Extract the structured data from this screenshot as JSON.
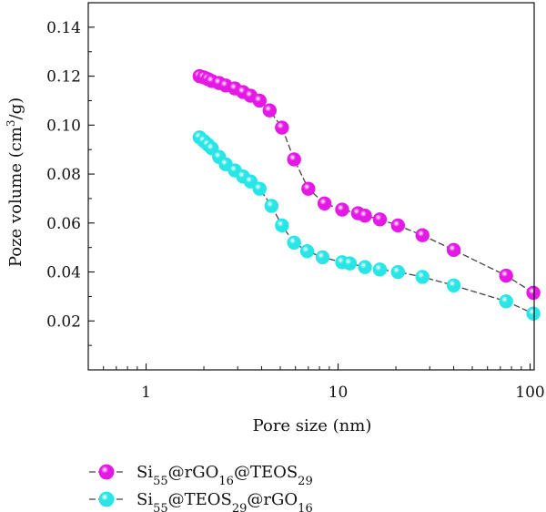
{
  "chart_data": {
    "type": "scatter",
    "title": "",
    "xlabel": "Pore size (nm)",
    "ylabel": "Poze volume (cm",
    "ylabel_sup": "3",
    "ylabel_tail": "/g)",
    "x_scale": "log",
    "xlim": [
      0.5,
      105
    ],
    "ylim": [
      0.0,
      0.15
    ],
    "xticks": [
      1,
      10,
      100
    ],
    "xtick_labels": [
      "1",
      "10",
      "100"
    ],
    "yticks": [
      0.02,
      0.04,
      0.06,
      0.08,
      0.1,
      0.12,
      0.14
    ],
    "ytick_labels": [
      "0.02",
      "0.04",
      "0.06",
      "0.08",
      "0.10",
      "0.12",
      "0.14"
    ],
    "grid": false,
    "legend_position": "bottom-left",
    "series": [
      {
        "label_parts": [
          {
            "t": "Si",
            "s": ""
          },
          {
            "t": "55",
            "s": "sub"
          },
          {
            "t": "@rGO",
            "s": ""
          },
          {
            "t": "16",
            "s": "sub"
          },
          {
            "t": "@TEOS",
            "s": ""
          },
          {
            "t": "29",
            "s": "sub"
          }
        ],
        "color": "#e519e5",
        "x": [
          1.9,
          2.0,
          2.1,
          2.2,
          2.4,
          2.6,
          2.9,
          3.2,
          3.5,
          3.9,
          4.4,
          5.1,
          5.9,
          7.0,
          8.5,
          10.5,
          12.7,
          13.8,
          16.5,
          20.5,
          27.5,
          40.0,
          75.0,
          104.0
        ],
        "y": [
          0.12,
          0.1195,
          0.1188,
          0.118,
          0.1172,
          0.1162,
          0.115,
          0.1135,
          0.112,
          0.11,
          0.106,
          0.099,
          0.086,
          0.074,
          0.068,
          0.0655,
          0.064,
          0.063,
          0.0615,
          0.059,
          0.055,
          0.049,
          0.0385,
          0.0315
        ]
      },
      {
        "label_parts": [
          {
            "t": "Si",
            "s": ""
          },
          {
            "t": "55",
            "s": "sub"
          },
          {
            "t": "@TEOS",
            "s": ""
          },
          {
            "t": "29",
            "s": "sub"
          },
          {
            "t": "@rGO",
            "s": ""
          },
          {
            "t": "16",
            "s": "sub"
          }
        ],
        "color": "#28e6e6",
        "x": [
          1.9,
          2.0,
          2.1,
          2.2,
          2.4,
          2.6,
          2.9,
          3.2,
          3.5,
          3.9,
          4.5,
          5.1,
          5.9,
          6.9,
          8.3,
          10.5,
          11.5,
          13.8,
          16.5,
          20.5,
          27.5,
          40.0,
          75.0,
          104.0
        ],
        "y": [
          0.095,
          0.0935,
          0.092,
          0.0905,
          0.087,
          0.084,
          0.0815,
          0.079,
          0.077,
          0.074,
          0.067,
          0.059,
          0.052,
          0.0485,
          0.046,
          0.044,
          0.0435,
          0.042,
          0.041,
          0.04,
          0.038,
          0.0345,
          0.028,
          0.023
        ]
      }
    ]
  }
}
